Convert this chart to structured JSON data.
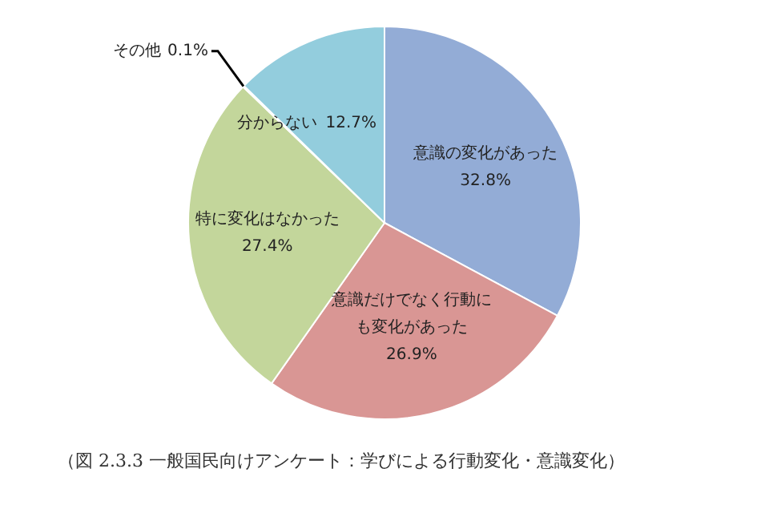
{
  "chart_data": {
    "type": "pie",
    "categories": [
      "意識の変化があった",
      "意識だけでなく行動にも変化があった",
      "特に変化はなかった",
      "その他",
      "分からない"
    ],
    "values": [
      32.8,
      26.9,
      27.4,
      0.1,
      12.7
    ],
    "colors": [
      "#93acd6",
      "#d99694",
      "#c3d69b",
      "#b3a2c7",
      "#93cddd"
    ],
    "value_labels": [
      "32.8%",
      "26.9%",
      "27.4%",
      "0.1%",
      "12.7%"
    ],
    "legend": false,
    "annotations": [
      "（図 2.3.3 一般国民向けアンケート：学びによる行動変化・意識変化）"
    ]
  }
}
